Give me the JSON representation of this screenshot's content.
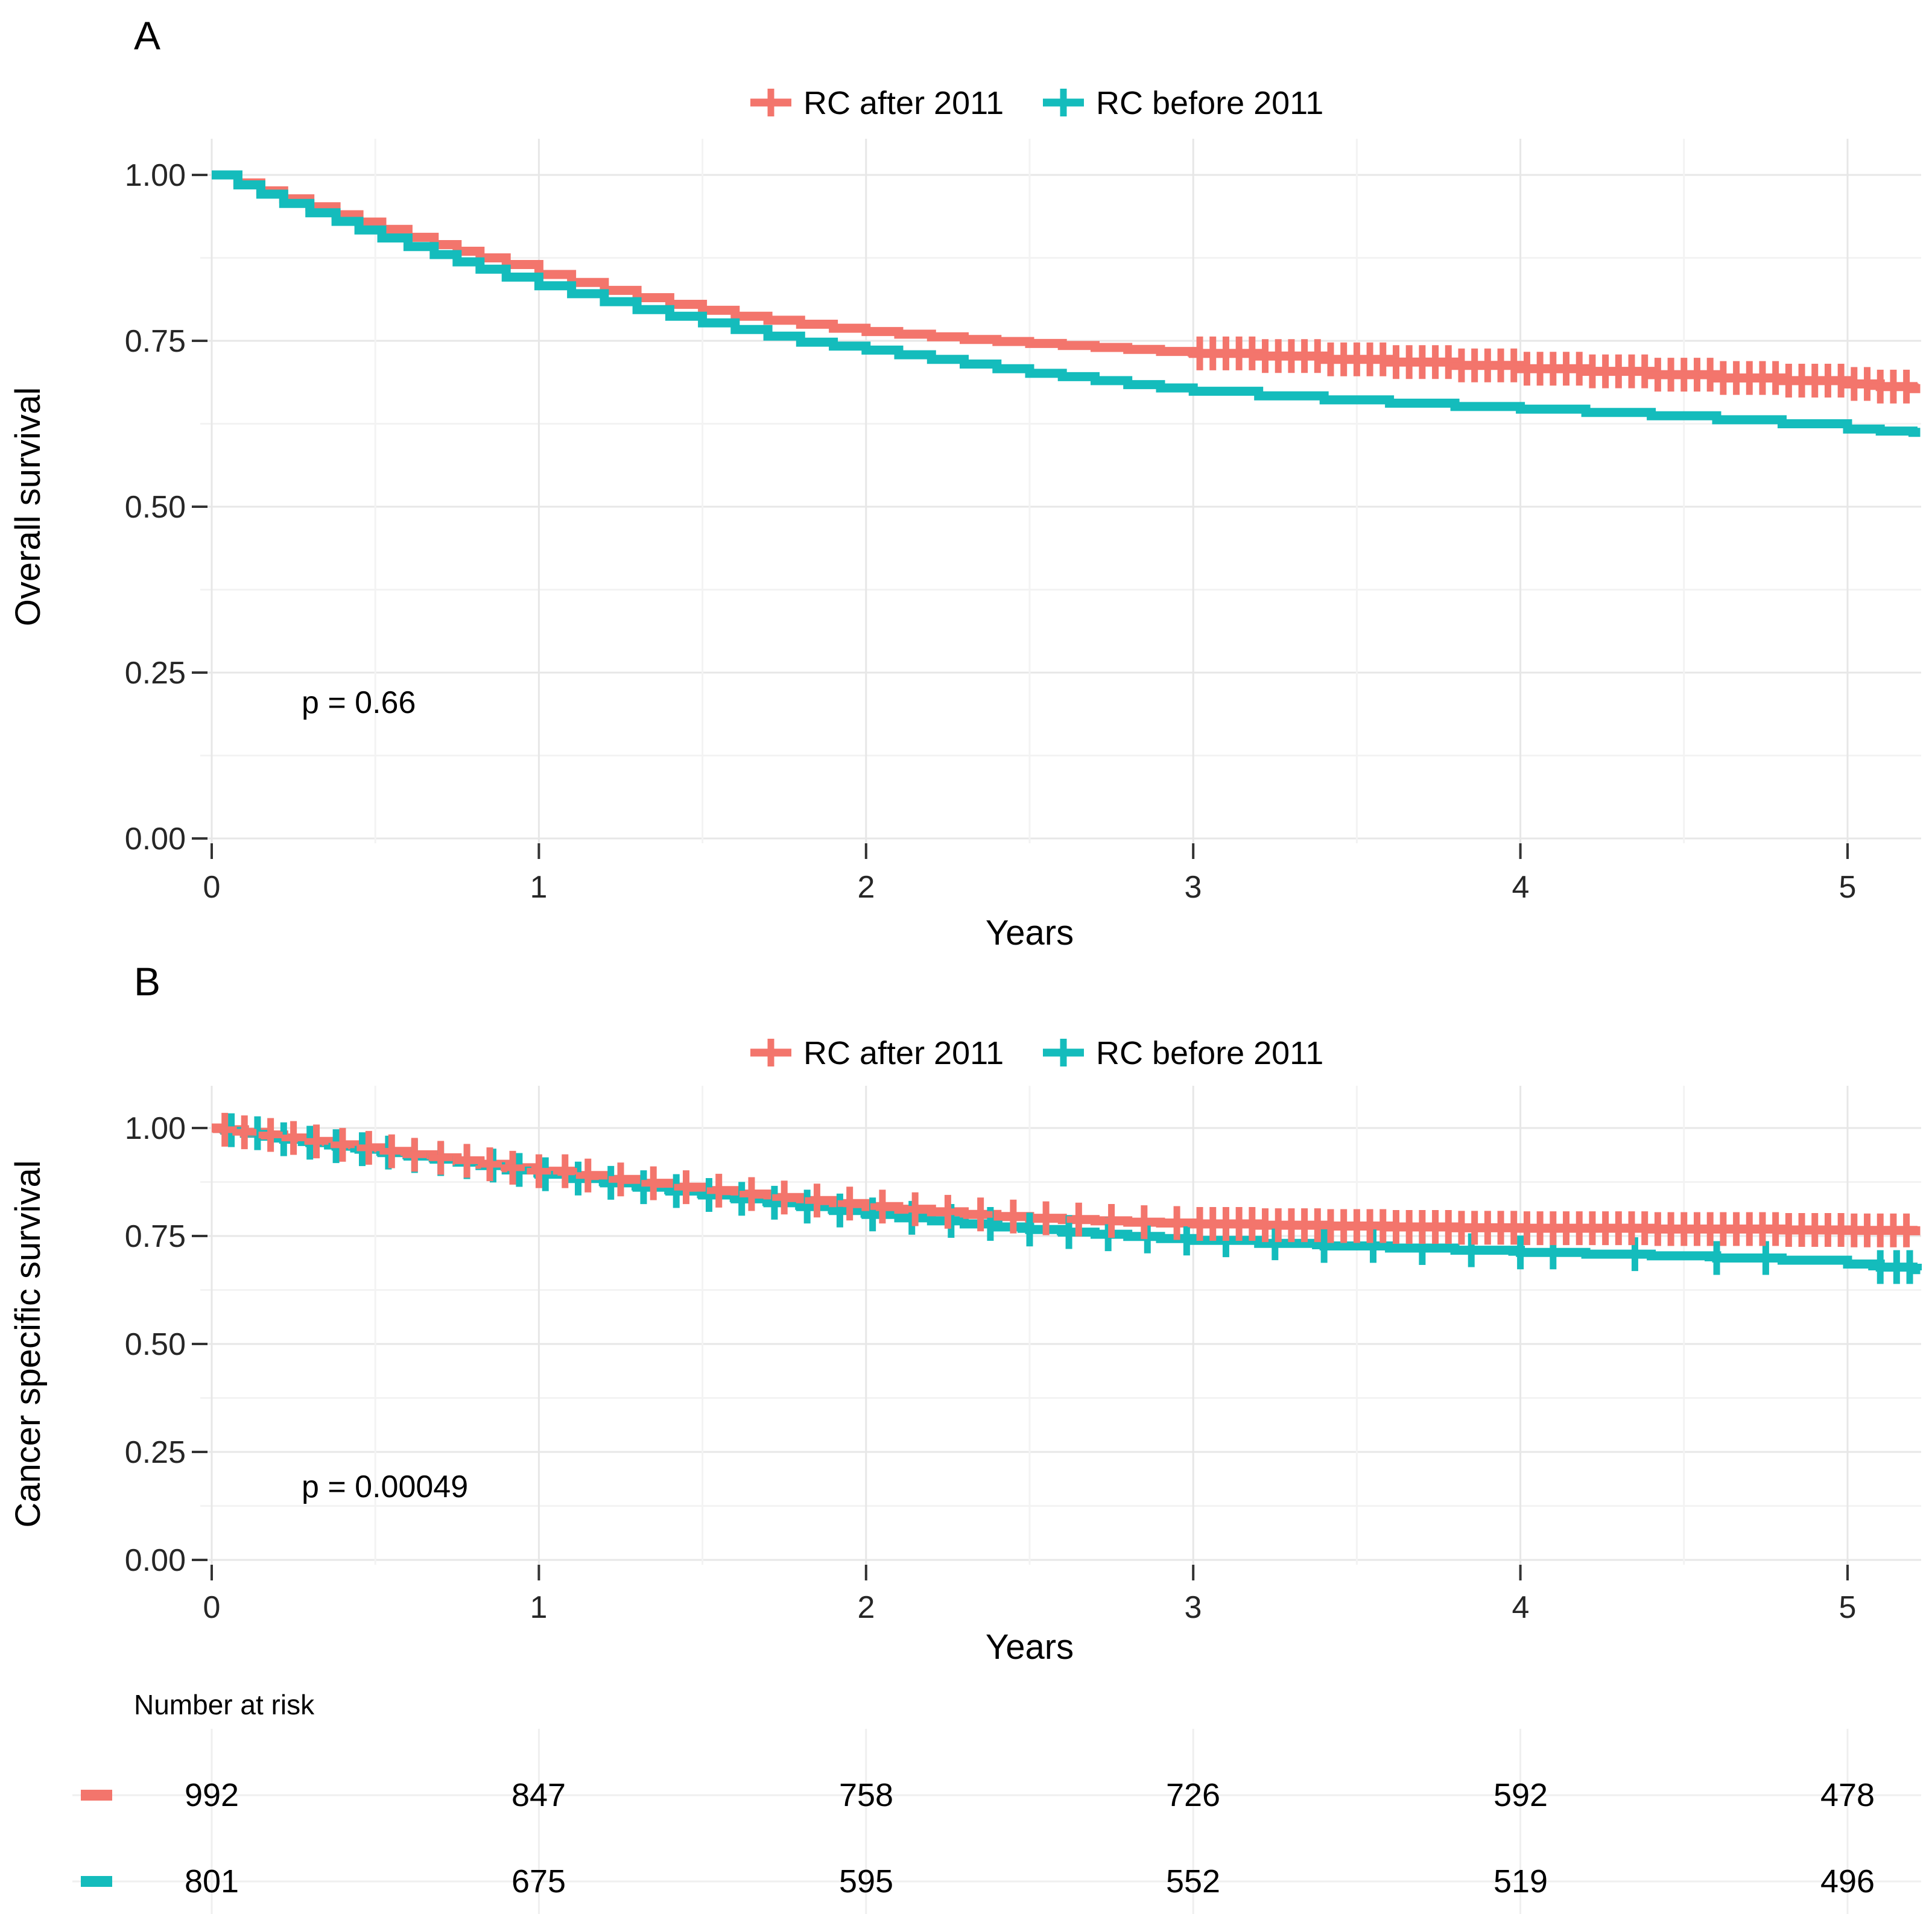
{
  "chart_data": [
    {
      "type": "line",
      "chart_kind": "kaplan-meier",
      "panel_label": "A",
      "ylabel": "Overall survival",
      "xlabel": "Years",
      "p_label": "p = 0.66",
      "xlim": [
        0,
        5.22
      ],
      "ylim": [
        0,
        1
      ],
      "xticks": [
        0,
        1,
        2,
        3,
        4,
        5
      ],
      "xtick_labels": [
        "0",
        "1",
        "2",
        "3",
        "4",
        "5"
      ],
      "yticks": [
        1.0,
        0.75,
        0.5,
        0.25,
        0.0
      ],
      "ytick_labels": [
        "1.00",
        "0.75",
        "0.50",
        "0.25",
        "0.00"
      ],
      "grid": true,
      "legend_position": "top",
      "series": [
        {
          "name": "RC after 2011",
          "color": "#F3756C",
          "x": [
            0,
            0.08,
            0.15,
            0.22,
            0.3,
            0.38,
            0.45,
            0.52,
            0.6,
            0.68,
            0.75,
            0.82,
            0.9,
            1.0,
            1.1,
            1.2,
            1.3,
            1.4,
            1.5,
            1.6,
            1.7,
            1.8,
            1.9,
            2.0,
            2.1,
            2.2,
            2.3,
            2.4,
            2.5,
            2.6,
            2.7,
            2.8,
            2.9,
            3.0,
            3.2,
            3.4,
            3.6,
            3.8,
            4.0,
            4.2,
            4.4,
            4.6,
            4.8,
            5.0,
            5.1,
            5.2
          ],
          "y": [
            1.0,
            0.988,
            0.976,
            0.964,
            0.952,
            0.94,
            0.929,
            0.918,
            0.906,
            0.895,
            0.885,
            0.875,
            0.865,
            0.85,
            0.838,
            0.826,
            0.815,
            0.805,
            0.796,
            0.787,
            0.781,
            0.775,
            0.769,
            0.764,
            0.76,
            0.756,
            0.752,
            0.749,
            0.746,
            0.743,
            0.74,
            0.737,
            0.734,
            0.731,
            0.727,
            0.722,
            0.718,
            0.713,
            0.708,
            0.704,
            0.699,
            0.694,
            0.69,
            0.685,
            0.681,
            0.678
          ],
          "censor_x": [
            3.02,
            3.06,
            3.1,
            3.14,
            3.18,
            3.22,
            3.26,
            3.3,
            3.34,
            3.38,
            3.42,
            3.46,
            3.5,
            3.54,
            3.58,
            3.62,
            3.66,
            3.7,
            3.74,
            3.78,
            3.82,
            3.86,
            3.9,
            3.94,
            3.98,
            4.02,
            4.06,
            4.1,
            4.14,
            4.18,
            4.22,
            4.26,
            4.3,
            4.34,
            4.38,
            4.42,
            4.46,
            4.5,
            4.54,
            4.58,
            4.62,
            4.66,
            4.7,
            4.74,
            4.78,
            4.82,
            4.86,
            4.9,
            4.94,
            4.98,
            5.02,
            5.06,
            5.1,
            5.14,
            5.18
          ]
        },
        {
          "name": "RC before 2011",
          "color": "#14BCBC",
          "x": [
            0,
            0.08,
            0.15,
            0.22,
            0.3,
            0.38,
            0.45,
            0.52,
            0.6,
            0.68,
            0.75,
            0.82,
            0.9,
            1.0,
            1.1,
            1.2,
            1.3,
            1.4,
            1.5,
            1.6,
            1.7,
            1.8,
            1.9,
            2.0,
            2.1,
            2.2,
            2.3,
            2.4,
            2.5,
            2.6,
            2.7,
            2.8,
            2.9,
            3.0,
            3.2,
            3.4,
            3.6,
            3.8,
            4.0,
            4.2,
            4.4,
            4.6,
            4.8,
            5.0,
            5.1,
            5.2
          ],
          "y": [
            1.0,
            0.985,
            0.971,
            0.957,
            0.943,
            0.93,
            0.917,
            0.905,
            0.892,
            0.88,
            0.869,
            0.858,
            0.846,
            0.833,
            0.821,
            0.809,
            0.797,
            0.787,
            0.777,
            0.767,
            0.757,
            0.748,
            0.742,
            0.736,
            0.729,
            0.722,
            0.715,
            0.708,
            0.701,
            0.696,
            0.69,
            0.684,
            0.679,
            0.674,
            0.667,
            0.661,
            0.656,
            0.651,
            0.647,
            0.642,
            0.637,
            0.631,
            0.625,
            0.617,
            0.614,
            0.612
          ],
          "censor_x": []
        }
      ]
    },
    {
      "type": "line",
      "chart_kind": "kaplan-meier",
      "panel_label": "B",
      "ylabel": "Cancer specific survival",
      "xlabel": "Years",
      "p_label": "p = 0.00049",
      "xlim": [
        0,
        5.22
      ],
      "ylim": [
        0,
        1
      ],
      "xticks": [
        0,
        1,
        2,
        3,
        4,
        5
      ],
      "xtick_labels": [
        "0",
        "1",
        "2",
        "3",
        "4",
        "5"
      ],
      "yticks": [
        1.0,
        0.75,
        0.5,
        0.25,
        0.0
      ],
      "ytick_labels": [
        "1.00",
        "0.75",
        "0.50",
        "0.25",
        "0.00"
      ],
      "grid": true,
      "legend_position": "top",
      "series": [
        {
          "name": "RC after 2011",
          "color": "#F3756C",
          "x": [
            0,
            0.04,
            0.1,
            0.16,
            0.22,
            0.3,
            0.38,
            0.45,
            0.52,
            0.6,
            0.68,
            0.75,
            0.82,
            0.9,
            1.0,
            1.1,
            1.2,
            1.3,
            1.4,
            1.5,
            1.6,
            1.7,
            1.8,
            1.9,
            2.0,
            2.1,
            2.2,
            2.3,
            2.4,
            2.5,
            2.6,
            2.7,
            2.8,
            2.9,
            3.0,
            3.2,
            3.4,
            3.6,
            3.8,
            4.0,
            4.4,
            4.8,
            5.0,
            5.2
          ],
          "y": [
            1.0,
            0.996,
            0.99,
            0.984,
            0.977,
            0.969,
            0.961,
            0.954,
            0.946,
            0.938,
            0.931,
            0.924,
            0.916,
            0.908,
            0.9,
            0.89,
            0.881,
            0.872,
            0.863,
            0.855,
            0.847,
            0.839,
            0.832,
            0.825,
            0.818,
            0.812,
            0.806,
            0.8,
            0.795,
            0.791,
            0.788,
            0.785,
            0.782,
            0.78,
            0.778,
            0.775,
            0.773,
            0.771,
            0.769,
            0.768,
            0.766,
            0.764,
            0.763,
            0.762
          ],
          "censor_x": [
            0.04,
            0.1,
            0.18,
            0.25,
            0.32,
            0.4,
            0.48,
            0.55,
            0.62,
            0.7,
            0.78,
            0.85,
            0.92,
            1.0,
            1.08,
            1.15,
            1.25,
            1.35,
            1.45,
            1.55,
            1.65,
            1.75,
            1.85,
            1.95,
            2.05,
            2.15,
            2.25,
            2.35,
            2.45,
            2.55,
            2.65,
            2.75,
            2.85,
            2.95,
            3.02,
            3.06,
            3.1,
            3.14,
            3.18,
            3.22,
            3.26,
            3.3,
            3.34,
            3.38,
            3.42,
            3.46,
            3.5,
            3.54,
            3.58,
            3.62,
            3.66,
            3.7,
            3.74,
            3.78,
            3.82,
            3.86,
            3.9,
            3.94,
            3.98,
            4.02,
            4.06,
            4.1,
            4.14,
            4.18,
            4.22,
            4.26,
            4.3,
            4.34,
            4.38,
            4.42,
            4.46,
            4.5,
            4.54,
            4.58,
            4.62,
            4.66,
            4.7,
            4.74,
            4.78,
            4.82,
            4.86,
            4.9,
            4.94,
            4.98,
            5.02,
            5.06,
            5.1,
            5.14,
            5.18
          ]
        },
        {
          "name": "RC before 2011",
          "color": "#14BCBC",
          "x": [
            0,
            0.04,
            0.1,
            0.16,
            0.22,
            0.3,
            0.38,
            0.45,
            0.52,
            0.6,
            0.68,
            0.75,
            0.82,
            0.9,
            1.0,
            1.1,
            1.2,
            1.3,
            1.4,
            1.5,
            1.6,
            1.7,
            1.8,
            1.9,
            2.0,
            2.1,
            2.2,
            2.3,
            2.4,
            2.5,
            2.6,
            2.7,
            2.8,
            2.9,
            3.0,
            3.2,
            3.4,
            3.6,
            3.8,
            4.0,
            4.2,
            4.4,
            4.6,
            4.8,
            5.0,
            5.1,
            5.2
          ],
          "y": [
            1.0,
            0.995,
            0.988,
            0.981,
            0.974,
            0.966,
            0.958,
            0.951,
            0.943,
            0.935,
            0.928,
            0.921,
            0.913,
            0.903,
            0.893,
            0.883,
            0.873,
            0.863,
            0.854,
            0.845,
            0.836,
            0.827,
            0.818,
            0.809,
            0.8,
            0.792,
            0.785,
            0.778,
            0.771,
            0.765,
            0.759,
            0.754,
            0.749,
            0.744,
            0.74,
            0.733,
            0.727,
            0.722,
            0.717,
            0.712,
            0.708,
            0.704,
            0.699,
            0.694,
            0.685,
            0.678,
            0.672
          ],
          "censor_x": [
            0.06,
            0.14,
            0.22,
            0.3,
            0.38,
            0.46,
            0.54,
            0.62,
            0.7,
            0.78,
            0.86,
            0.94,
            1.02,
            1.12,
            1.22,
            1.32,
            1.42,
            1.52,
            1.62,
            1.72,
            1.82,
            1.92,
            2.02,
            2.14,
            2.26,
            2.38,
            2.5,
            2.62,
            2.74,
            2.86,
            2.98,
            3.1,
            3.25,
            3.4,
            3.55,
            3.7,
            3.85,
            4.0,
            4.1,
            4.35,
            4.6,
            4.75,
            5.1,
            5.15,
            5.19
          ]
        }
      ]
    },
    {
      "type": "table",
      "title": "Number at risk",
      "x_positions": [
        0,
        1,
        2,
        3,
        4,
        5
      ],
      "rows": [
        {
          "name": "RC after 2011",
          "color": "#F3756C",
          "values": [
            "992",
            "847",
            "758",
            "726",
            "592",
            "478"
          ]
        },
        {
          "name": "RC before 2011",
          "color": "#14BCBC",
          "values": [
            "801",
            "675",
            "595",
            "552",
            "519",
            "496"
          ]
        }
      ]
    }
  ],
  "colors": {
    "rc_after_2011": "#F3756C",
    "rc_before_2011": "#14BCBC",
    "grid_major": "#E7E7E7",
    "grid_minor": "#F3F3F3",
    "tick_mark": "#333333"
  }
}
